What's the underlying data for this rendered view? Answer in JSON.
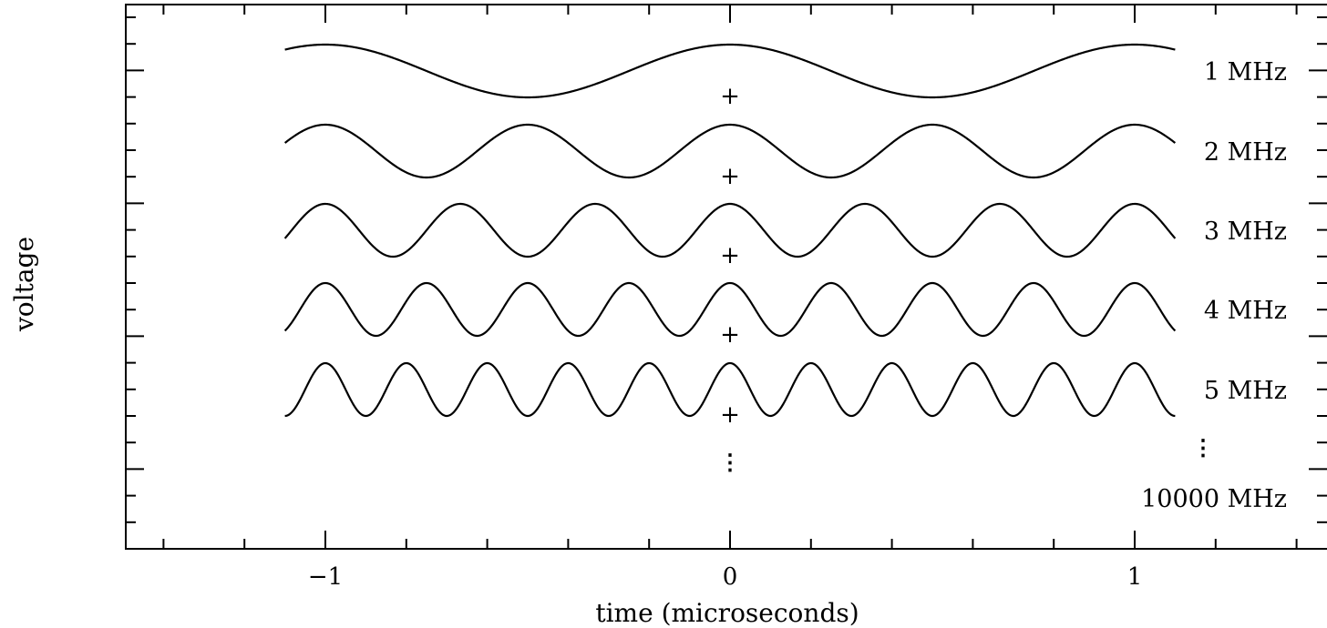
{
  "chart_data": {
    "type": "line",
    "title": "",
    "xlabel": "time (microseconds)",
    "ylabel": "voltage",
    "xlim": [
      -1.5,
      1.45
    ],
    "x_ticks": [
      {
        "value": -1,
        "label": "−1"
      },
      {
        "value": 0,
        "label": "0"
      },
      {
        "value": 1,
        "label": "1"
      }
    ],
    "x_range_of_waves": [
      -1.1,
      1.1
    ],
    "series": [
      {
        "name": "1 MHz",
        "frequency_mhz": 1,
        "function": "cos(2π·f·t)"
      },
      {
        "name": "2 MHz",
        "frequency_mhz": 2,
        "function": "cos(2π·f·t)"
      },
      {
        "name": "3 MHz",
        "frequency_mhz": 3,
        "function": "cos(2π·f·t)"
      },
      {
        "name": "4 MHz",
        "frequency_mhz": 4,
        "function": "cos(2π·f·t)"
      },
      {
        "name": "5 MHz",
        "frequency_mhz": 5,
        "function": "cos(2π·f·t)"
      }
    ],
    "continuation_label": "10000 MHz",
    "continuation_symbol": "⋮",
    "origin_marker": "+",
    "grid": false,
    "legend": "labels at right of each trace"
  }
}
